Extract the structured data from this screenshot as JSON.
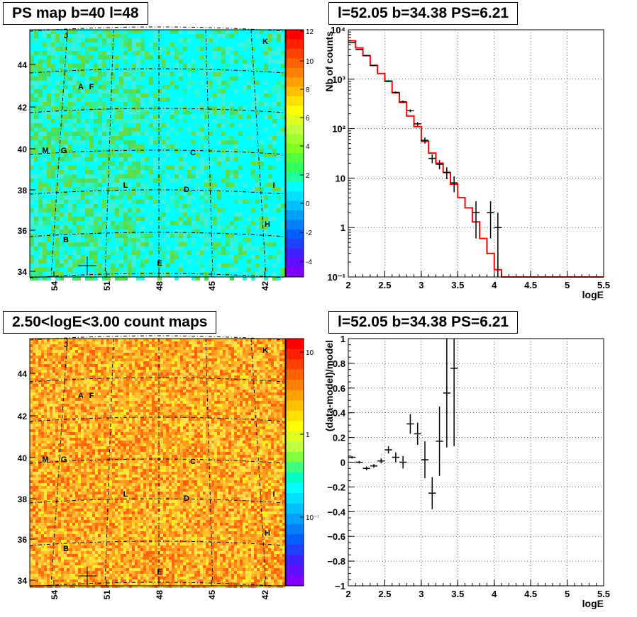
{
  "panels": {
    "ps_map": {
      "title": "PS map b=40 l=48",
      "y_ticks": [
        "44",
        "42",
        "40",
        "38",
        "36",
        "34"
      ],
      "x_ticks": [
        "54",
        "51",
        "48",
        "45",
        "42"
      ],
      "colorbar_ticks": [
        "12",
        "10",
        "8",
        "6",
        "4",
        "2",
        "0",
        "-2",
        "-4"
      ],
      "source_labels": [
        "J",
        "K",
        "A",
        "F",
        "M",
        "G",
        "C",
        "L",
        "D",
        "I",
        "H",
        "B",
        "E"
      ]
    },
    "count_map": {
      "title": "2.50<logE<3.00 count maps",
      "y_ticks": [
        "44",
        "42",
        "40",
        "38",
        "36",
        "34"
      ],
      "x_ticks": [
        "54",
        "51",
        "48",
        "45",
        "42"
      ],
      "colorbar_ticks": [
        "10",
        "1",
        "10⁻¹"
      ],
      "source_labels": [
        "J",
        "K",
        "A",
        "F",
        "M",
        "G",
        "C",
        "L",
        "D",
        "I",
        "H",
        "B",
        "E"
      ]
    }
  },
  "chart_data": [
    {
      "type": "scatter",
      "title": "l=52.05 b=34.38 PS=6.21",
      "xlabel": "logE",
      "ylabel": "Nb of counts",
      "xlim": [
        2,
        5.5
      ],
      "ylim": [
        0.1,
        10000
      ],
      "log_y": true,
      "grid": true,
      "x_ticks": [
        "2",
        "2.5",
        "3",
        "3.5",
        "4",
        "4.5",
        "5",
        "5.5"
      ],
      "y_ticks": [
        "10⁻¹",
        "1",
        "10",
        "10²",
        "10³",
        "10⁴"
      ],
      "data_points": [
        {
          "x": 2.05,
          "y": 5500,
          "yerr_lo": 5400,
          "yerr_hi": 5600
        },
        {
          "x": 2.15,
          "y": 4000,
          "yerr_lo": 3900,
          "yerr_hi": 4100
        },
        {
          "x": 2.25,
          "y": 3000,
          "yerr_lo": 2900,
          "yerr_hi": 3100
        },
        {
          "x": 2.35,
          "y": 1900,
          "yerr_lo": 1850,
          "yerr_hi": 1950
        },
        {
          "x": 2.55,
          "y": 920,
          "yerr_lo": 890,
          "yerr_hi": 950
        },
        {
          "x": 2.65,
          "y": 540,
          "yerr_lo": 515,
          "yerr_hi": 565
        },
        {
          "x": 2.75,
          "y": 350,
          "yerr_lo": 330,
          "yerr_hi": 370
        },
        {
          "x": 2.85,
          "y": 230,
          "yerr_lo": 215,
          "yerr_hi": 245
        },
        {
          "x": 2.95,
          "y": 125,
          "yerr_lo": 114,
          "yerr_hi": 136
        },
        {
          "x": 3.05,
          "y": 58,
          "yerr_lo": 50,
          "yerr_hi": 66
        },
        {
          "x": 3.15,
          "y": 25,
          "yerr_lo": 20,
          "yerr_hi": 30
        },
        {
          "x": 3.25,
          "y": 19,
          "yerr_lo": 15,
          "yerr_hi": 23
        },
        {
          "x": 3.35,
          "y": 13,
          "yerr_lo": 9.5,
          "yerr_hi": 16.5
        },
        {
          "x": 3.45,
          "y": 8,
          "yerr_lo": 5.2,
          "yerr_hi": 10.8
        },
        {
          "x": 3.75,
          "y": 2,
          "yerr_lo": 0.6,
          "yerr_hi": 3.4
        },
        {
          "x": 3.95,
          "y": 2,
          "yerr_lo": 0.6,
          "yerr_hi": 3.4
        },
        {
          "x": 4.05,
          "y": 1,
          "yerr_lo": 0.1,
          "yerr_hi": 2
        }
      ],
      "model_edges": [
        2.0,
        2.1,
        2.2,
        2.3,
        2.4,
        2.5,
        2.6,
        2.7,
        2.8,
        2.9,
        3.0,
        3.1,
        3.2,
        3.3,
        3.4,
        3.5,
        3.6,
        3.7,
        3.8,
        3.9,
        4.0,
        4.1,
        5.5
      ],
      "model_values": [
        6000,
        4300,
        3000,
        1900,
        1300,
        900,
        530,
        340,
        180,
        110,
        55,
        32,
        20,
        13,
        7.5,
        4,
        2.5,
        1.3,
        0.6,
        0.3,
        0.14,
        0.1
      ],
      "model_color": "#ff0000"
    },
    {
      "type": "scatter",
      "title": "l=52.05 b=34.38 PS=6.21",
      "xlabel": "logE",
      "ylabel": "(data-model)/model",
      "xlim": [
        2,
        5.5
      ],
      "ylim": [
        -1,
        1
      ],
      "grid": true,
      "x_ticks": [
        "2",
        "2.5",
        "3",
        "3.5",
        "4",
        "4.5",
        "5",
        "5.5"
      ],
      "y_ticks": [
        "1",
        "0.8",
        "0.6",
        "0.4",
        "0.2",
        "0",
        "−0.2",
        "−0.4",
        "−0.6",
        "−0.8",
        "−1"
      ],
      "points": [
        {
          "x": 2.05,
          "y": 0.04,
          "err": 0.01
        },
        {
          "x": 2.15,
          "y": 0.0,
          "err": 0.01
        },
        {
          "x": 2.25,
          "y": -0.05,
          "err": 0.015
        },
        {
          "x": 2.35,
          "y": -0.03,
          "err": 0.015
        },
        {
          "x": 2.45,
          "y": 0.01,
          "err": 0.02
        },
        {
          "x": 2.55,
          "y": 0.1,
          "err": 0.03
        },
        {
          "x": 2.65,
          "y": 0.04,
          "err": 0.04
        },
        {
          "x": 2.75,
          "y": 0.0,
          "err": 0.05
        },
        {
          "x": 2.85,
          "y": 0.31,
          "err": 0.08
        },
        {
          "x": 2.95,
          "y": 0.23,
          "err": 0.09
        },
        {
          "x": 3.05,
          "y": 0.02,
          "err": 0.15
        },
        {
          "x": 3.15,
          "y": -0.25,
          "err": 0.13
        },
        {
          "x": 3.25,
          "y": 0.17,
          "err": 0.28
        },
        {
          "x": 3.35,
          "y": 0.56,
          "err": 0.44
        },
        {
          "x": 3.45,
          "y": 0.76,
          "err": 0.63
        }
      ]
    }
  ]
}
